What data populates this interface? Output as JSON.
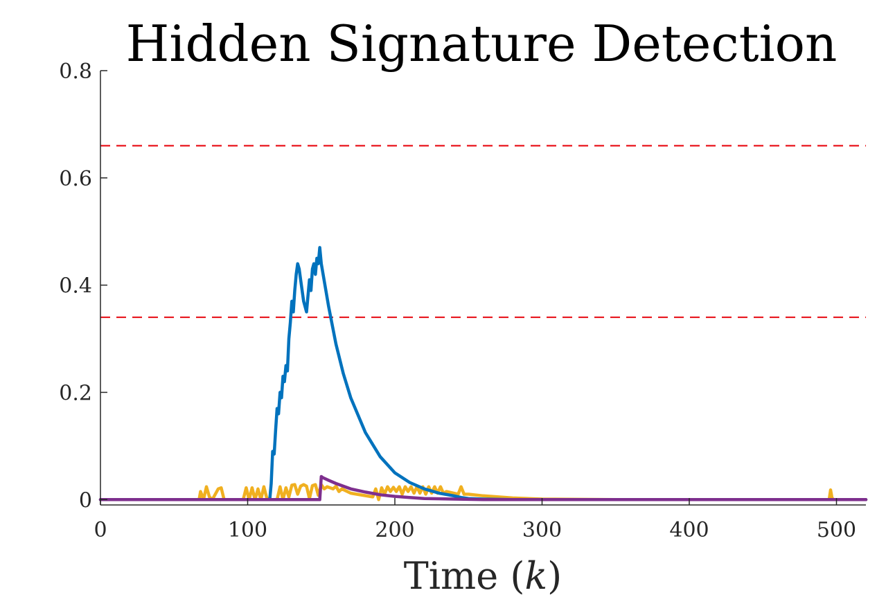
{
  "chart_data": {
    "type": "line",
    "title": "Hidden Signature Detection",
    "xlabel": "Time (k)",
    "ylabel": "",
    "xlim": [
      0,
      520
    ],
    "ylim": [
      -0.01,
      0.8
    ],
    "xticks": [
      0,
      100,
      200,
      300,
      400,
      500
    ],
    "yticks": [
      0,
      0.2,
      0.4,
      0.6,
      0.8
    ],
    "xtick_labels": [
      "0",
      "100",
      "200",
      "300",
      "400",
      "500"
    ],
    "ytick_labels": [
      "0",
      "0.2",
      "0.4",
      "0.6",
      "0.8"
    ],
    "grid": false,
    "legend": "none",
    "thresholds": [
      {
        "y": 0.66,
        "color": "#e8141c",
        "style": "dashed"
      },
      {
        "y": 0.34,
        "color": "#e8141c",
        "style": "dashed"
      }
    ],
    "series": [
      {
        "color": "#f0b020",
        "x": [
          0,
          67,
          68,
          70,
          72,
          74,
          76,
          80,
          82,
          84,
          97,
          99,
          101,
          103,
          105,
          107,
          109,
          111,
          113,
          115,
          120,
          122,
          124,
          126,
          128,
          130,
          132,
          134,
          136,
          138,
          140,
          142,
          144,
          146,
          148,
          150,
          152,
          154,
          158,
          160,
          162,
          164,
          170,
          185,
          187,
          189,
          191,
          193,
          195,
          197,
          199,
          201,
          203,
          205,
          207,
          209,
          211,
          213,
          215,
          217,
          219,
          221,
          223,
          225,
          227,
          229,
          231,
          233,
          235,
          243,
          245,
          247,
          250,
          260,
          280,
          300,
          350,
          495,
          496,
          497,
          498,
          520
        ],
        "y": [
          0,
          0,
          0.015,
          0,
          0.024,
          0.005,
          0,
          0.02,
          0.022,
          0,
          0,
          0.022,
          0,
          0.022,
          0,
          0.02,
          0,
          0.024,
          0.003,
          0,
          0,
          0.024,
          0,
          0.022,
          0.005,
          0.027,
          0.028,
          0.01,
          0.025,
          0.028,
          0.025,
          0.002,
          0.026,
          0.028,
          0.008,
          0.028,
          0.02,
          0.024,
          0.02,
          0.025,
          0.015,
          0.02,
          0.012,
          0.005,
          0.02,
          0,
          0.022,
          0.01,
          0.024,
          0.015,
          0.023,
          0.015,
          0.024,
          0.01,
          0.024,
          0.015,
          0.024,
          0.012,
          0.024,
          0.012,
          0.024,
          0.01,
          0.024,
          0.012,
          0.024,
          0.012,
          0.024,
          0.012,
          0.015,
          0.01,
          0.024,
          0.01,
          0.01,
          0.007,
          0.003,
          0.001,
          0,
          0,
          0.018,
          0.003,
          0,
          0
        ]
      },
      {
        "color": "#0072bd",
        "x": [
          0,
          115,
          116,
          117,
          118,
          119,
          120,
          121,
          122,
          123,
          124,
          125,
          126,
          127,
          128,
          129,
          130,
          131,
          132,
          133,
          134,
          135,
          136,
          138,
          140,
          141,
          142,
          143,
          144,
          145,
          146,
          147,
          148,
          149,
          150,
          155,
          160,
          165,
          170,
          180,
          190,
          200,
          210,
          220,
          230,
          240,
          245,
          250,
          260,
          280,
          300,
          350,
          520
        ],
        "y": [
          0,
          0,
          0.03,
          0.09,
          0.085,
          0.13,
          0.17,
          0.16,
          0.2,
          0.19,
          0.23,
          0.22,
          0.25,
          0.24,
          0.3,
          0.33,
          0.37,
          0.35,
          0.39,
          0.42,
          0.44,
          0.43,
          0.41,
          0.37,
          0.35,
          0.38,
          0.41,
          0.39,
          0.43,
          0.44,
          0.42,
          0.45,
          0.44,
          0.47,
          0.44,
          0.36,
          0.29,
          0.235,
          0.19,
          0.125,
          0.08,
          0.05,
          0.032,
          0.02,
          0.012,
          0.007,
          0.004,
          0.002,
          0.001,
          0,
          0,
          0,
          0
        ]
      },
      {
        "color": "#7e2f8e",
        "x": [
          0,
          149,
          150,
          151,
          155,
          160,
          165,
          170,
          180,
          190,
          200,
          210,
          220,
          240,
          260,
          300,
          350,
          520
        ],
        "y": [
          0,
          0,
          0.043,
          0.041,
          0.036,
          0.03,
          0.025,
          0.02,
          0.014,
          0.009,
          0.006,
          0.004,
          0.002,
          0.001,
          0,
          0,
          0,
          0
        ]
      }
    ]
  }
}
